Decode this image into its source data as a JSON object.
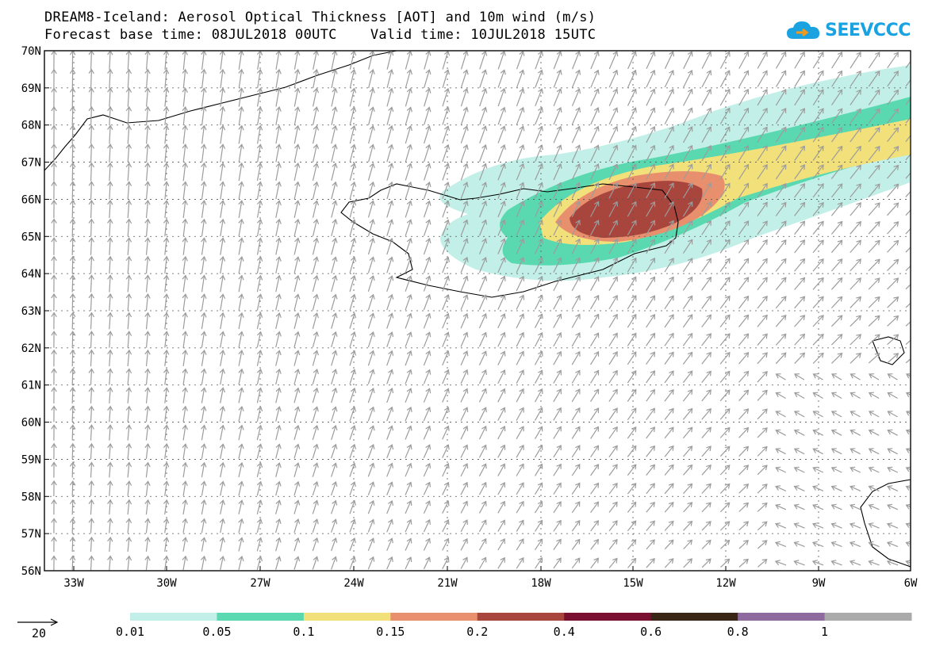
{
  "title": {
    "line1": "DREAM8-Iceland: Aerosol Optical Thickness [AOT] and 10m wind (m/s)",
    "line2": "Forecast base time: 08JUL2018 00UTC    Valid time: 10JUL2018 15UTC"
  },
  "logo": {
    "text": "SEEVCCC"
  },
  "axes": {
    "lat_labels": [
      "70N",
      "69N",
      "68N",
      "67N",
      "66N",
      "65N",
      "64N",
      "63N",
      "62N",
      "61N",
      "60N",
      "59N",
      "58N",
      "57N",
      "56N"
    ],
    "lon_labels": [
      "33W",
      "30W",
      "27W",
      "24W",
      "21W",
      "18W",
      "15W",
      "12W",
      "9W",
      "6W"
    ]
  },
  "wind_reference": {
    "label": "20"
  },
  "colorbar": {
    "labels": [
      "0.01",
      "0.05",
      "0.1",
      "0.15",
      "0.2",
      "0.4",
      "0.6",
      "0.8",
      "1"
    ],
    "colors": [
      "#c2f0e8",
      "#5ad9b0",
      "#f2e07a",
      "#e8906e",
      "#a8463e",
      "#7a1030",
      "#3a2616",
      "#8e6a9e",
      "#aaaaaa"
    ]
  },
  "plume_colors": {
    "aot_001": "#c2f0e8",
    "aot_005": "#5ad9b0",
    "aot_01": "#f2e07a",
    "aot_015": "#e8906e",
    "aot_02": "#a8463e"
  }
}
